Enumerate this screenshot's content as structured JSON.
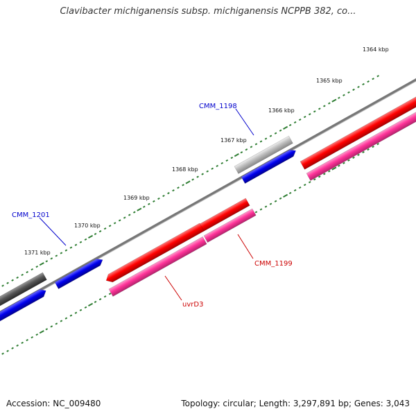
{
  "title": "Clavibacter michiganensis subsp. michiganensis NCPPB 382, co...",
  "footer": {
    "accession": "Accession: NC_009480",
    "stats": "Topology: circular; Length: 3,297,891 bp; Genes: 3,043"
  },
  "scale": {
    "ticks": [
      {
        "kbp": 1364,
        "label": "1364 kbp"
      },
      {
        "kbp": 1365,
        "label": "1365 kbp"
      },
      {
        "kbp": 1366,
        "label": "1366 kbp"
      },
      {
        "kbp": 1367,
        "label": "1367 kbp"
      },
      {
        "kbp": 1368,
        "label": "1368 kbp"
      },
      {
        "kbp": 1369,
        "label": "1369 kbp"
      },
      {
        "kbp": 1370,
        "label": "1370 kbp"
      },
      {
        "kbp": 1371,
        "label": "1371 kbp"
      }
    ]
  },
  "colors": {
    "backbone": "#777777",
    "tick_dots": "#2e7d32",
    "cds_forward": "#ff0000",
    "cds_reverse": "#0000ee",
    "cds_pink": "#ff3399",
    "gray_dark": "#555555",
    "gray_light": "#b8b8b8",
    "label_blue": "#0000cc",
    "label_red": "#cc0000"
  },
  "gene_labels": [
    {
      "name": "CMM_1198",
      "color": "#0000cc"
    },
    {
      "name": "CMM_1201",
      "color": "#0000cc"
    },
    {
      "name": "CMM_1199",
      "color": "#cc0000"
    },
    {
      "name": "uvrD3",
      "color": "#cc0000"
    }
  ]
}
